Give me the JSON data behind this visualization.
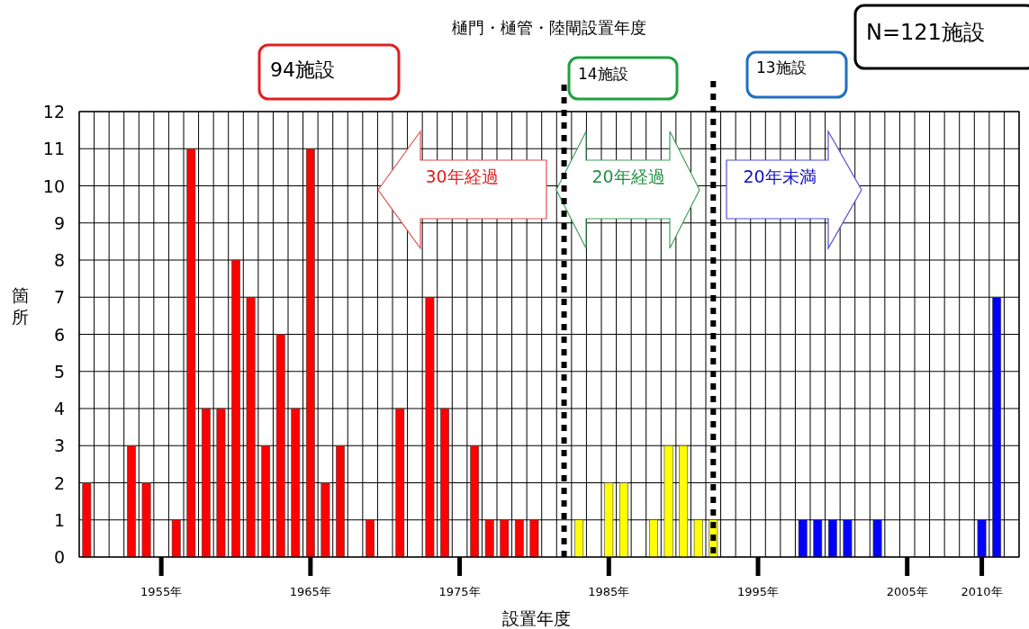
{
  "chart_data": {
    "type": "bar",
    "title": "樋門・樋管・陸閘設置年度",
    "xlabel": "設置年度",
    "ylabel": "箇所",
    "x": [
      1950,
      1953,
      1954,
      1956,
      1957,
      1958,
      1959,
      1960,
      1961,
      1962,
      1963,
      1964,
      1965,
      1966,
      1967,
      1969,
      1971,
      1973,
      1974,
      1976,
      1977,
      1978,
      1979,
      1980,
      1983,
      1985,
      1986,
      1988,
      1989,
      1990,
      1991,
      1992,
      1998,
      1999,
      2000,
      2001,
      2003,
      2010,
      2011
    ],
    "values": [
      2,
      3,
      2,
      1,
      11,
      4,
      4,
      8,
      7,
      3,
      6,
      4,
      11,
      2,
      3,
      1,
      4,
      7,
      4,
      3,
      1,
      1,
      1,
      1,
      1,
      2,
      2,
      1,
      3,
      3,
      1,
      1,
      1,
      1,
      1,
      1,
      1,
      1,
      7
    ],
    "colors": [
      "#ff0000",
      "#ff0000",
      "#ff0000",
      "#ff0000",
      "#ff0000",
      "#ff0000",
      "#ff0000",
      "#ff0000",
      "#ff0000",
      "#ff0000",
      "#ff0000",
      "#ff0000",
      "#ff0000",
      "#ff0000",
      "#ff0000",
      "#ff0000",
      "#ff0000",
      "#ff0000",
      "#ff0000",
      "#ff0000",
      "#ff0000",
      "#ff0000",
      "#ff0000",
      "#ff0000",
      "#ffff00",
      "#ffff00",
      "#ffff00",
      "#ffff00",
      "#ffff00",
      "#ffff00",
      "#ffff00",
      "#ffff00",
      "#0000ff",
      "#0000ff",
      "#0000ff",
      "#0000ff",
      "#0000ff",
      "#0000ff",
      "#0000ff"
    ],
    "xlim": [
      1949.5,
      2012.5
    ],
    "xticks": [
      {
        "value": 1955,
        "label": "1955年"
      },
      {
        "value": 1965,
        "label": "1965年"
      },
      {
        "value": 1975,
        "label": "1975年"
      },
      {
        "value": 1985,
        "label": "1985年"
      },
      {
        "value": 1995,
        "label": "1995年"
      },
      {
        "value": 2005,
        "label": "2005年"
      },
      {
        "value": 2010,
        "label": "2010年"
      }
    ],
    "ylim": [
      0,
      12
    ],
    "yticks": [
      0,
      1,
      2,
      3,
      4,
      5,
      6,
      7,
      8,
      9,
      10,
      11,
      12
    ],
    "grid": true,
    "ref_lines": [
      {
        "axis": "x",
        "value": 1982,
        "color": "#000000",
        "line_style": "dotted"
      },
      {
        "axis": "x",
        "value": 1992,
        "color": "#000000",
        "line_style": "dotted"
      }
    ],
    "annotations": [
      "94施設",
      "14施設",
      "13施設",
      "N=121施設",
      "30年経過",
      "20年経過",
      "20年未満"
    ]
  }
}
